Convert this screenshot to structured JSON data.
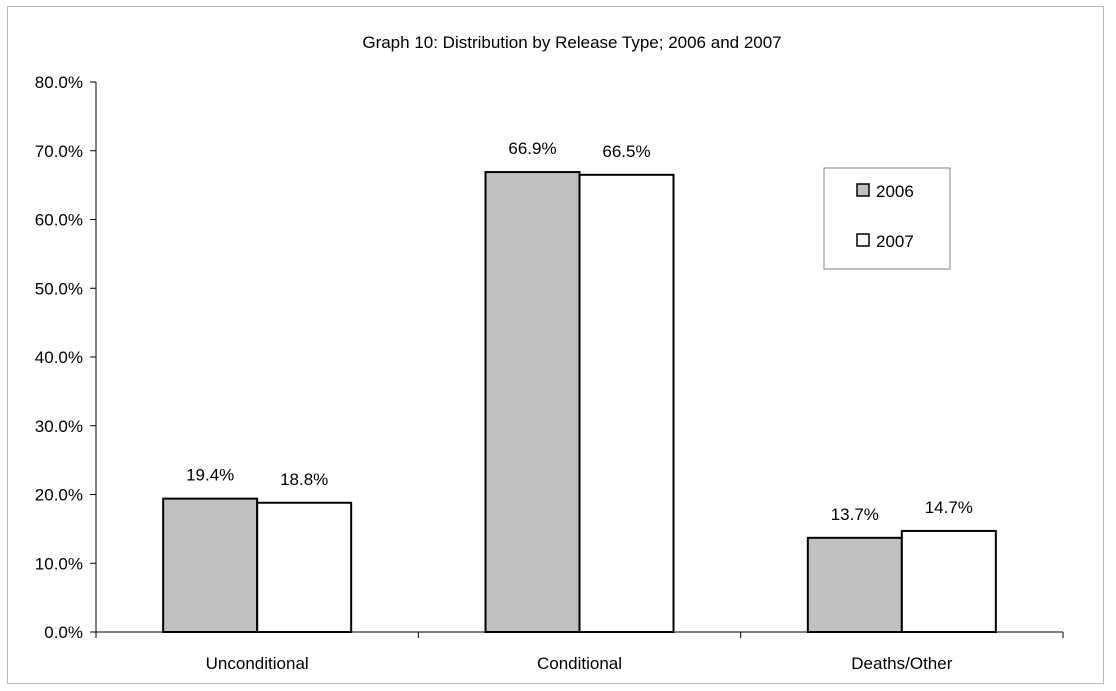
{
  "chart_data": {
    "type": "bar",
    "title": "Graph 10:  Distribution by Release Type; 2006 and 2007",
    "xlabel": "",
    "ylabel": "",
    "categories": [
      "Unconditional",
      "Conditional",
      "Deaths/Other"
    ],
    "series": [
      {
        "name": "2006",
        "values": [
          19.4,
          66.9,
          13.7
        ],
        "labels": [
          "19.4%",
          "66.9%",
          "13.7%"
        ],
        "color": "#c0c0c0"
      },
      {
        "name": "2007",
        "values": [
          18.8,
          66.5,
          14.7
        ],
        "labels": [
          "18.8%",
          "66.5%",
          "14.7%"
        ],
        "color": "#ffffff"
      }
    ],
    "ylim": [
      0,
      80
    ],
    "yticks": [
      "0.0%",
      "10.0%",
      "20.0%",
      "30.0%",
      "40.0%",
      "50.0%",
      "60.0%",
      "70.0%",
      "80.0%"
    ],
    "grid": false,
    "legend_position": "top-right"
  }
}
